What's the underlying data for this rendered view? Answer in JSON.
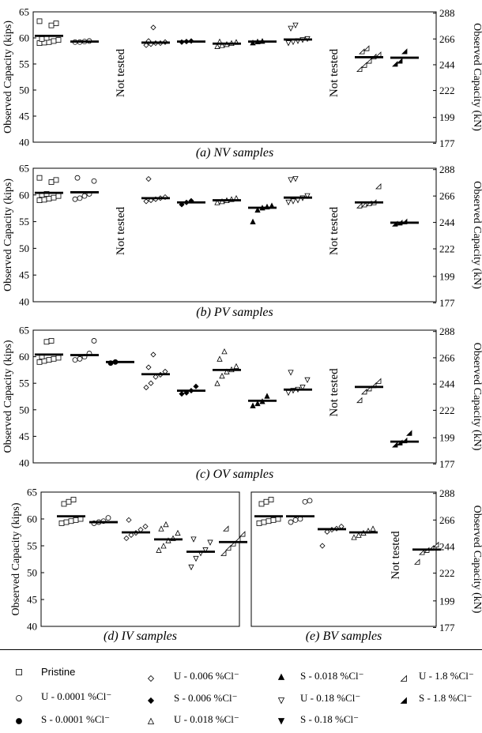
{
  "chart_data": [
    {
      "type": "scatter",
      "caption": "(a) NV samples",
      "ylabel_left": "Observed Capacity (kips)",
      "ylabel_right": "Observed Capacity (kN)",
      "ylim": [
        40,
        65
      ],
      "yticks_left": [
        "40",
        "45",
        "50",
        "55",
        "60",
        "65"
      ],
      "yticks_right": [
        "177",
        "199",
        "222",
        "244",
        "266",
        "288"
      ],
      "yticks_right_values": [
        177,
        199,
        222,
        244,
        266,
        288
      ],
      "not_tested_text": "Not tested",
      "groups": [
        {
          "condition": "Pristine",
          "mean": 60.4,
          "values": [
            59.0,
            59.1,
            59.2,
            59.4,
            59.6,
            59.8,
            60.0,
            62.4,
            62.8,
            63.2
          ]
        },
        {
          "condition": "U - 0.0001 %Cl⁻",
          "mean": 59.3,
          "values": [
            59.2,
            59.2,
            59.3,
            59.4
          ]
        },
        {
          "condition": "S - 0.0001 %Cl⁻",
          "not_tested": true
        },
        {
          "condition": "U - 0.006 %Cl⁻",
          "mean": 59.1,
          "values": [
            58.6,
            58.8,
            59.0,
            59.0,
            59.2,
            59.4,
            62.0
          ]
        },
        {
          "condition": "S - 0.006 %Cl⁻",
          "mean": 59.3,
          "values": [
            59.2,
            59.3,
            59.4
          ]
        },
        {
          "condition": "U - 0.018 %Cl⁻",
          "mean": 58.9,
          "values": [
            58.4,
            58.6,
            58.8,
            59.0,
            59.2,
            59.3
          ]
        },
        {
          "condition": "S - 0.018 %Cl⁻",
          "mean": 59.3,
          "values": [
            59.1,
            59.3,
            59.4
          ]
        },
        {
          "condition": "U - 0.18 %Cl⁻",
          "mean": 59.7,
          "values": [
            59.0,
            59.2,
            59.4,
            59.6,
            59.8,
            61.8,
            62.4
          ]
        },
        {
          "condition": "S - 0.18 %Cl⁻",
          "not_tested": true
        },
        {
          "condition": "U - 1.8 %Cl⁻",
          "mean": 56.3,
          "values": [
            54.0,
            54.8,
            55.6,
            56.4,
            56.8,
            57.4,
            58.0
          ]
        },
        {
          "condition": "S - 1.8 %Cl⁻",
          "mean": 56.2,
          "values": [
            55.0,
            55.6,
            57.4
          ]
        }
      ]
    },
    {
      "type": "scatter",
      "caption": "(b) PV samples",
      "ylabel_left": "Observed Capacity (kips)",
      "ylabel_right": "Observed Capacity (kN)",
      "ylim": [
        40,
        65
      ],
      "yticks_left": [
        "40",
        "45",
        "50",
        "55",
        "60",
        "65"
      ],
      "yticks_right": [
        "177",
        "199",
        "222",
        "244",
        "266",
        "288"
      ],
      "yticks_right_values": [
        177,
        199,
        222,
        244,
        266,
        288
      ],
      "not_tested_text": "Not tested",
      "groups": [
        {
          "condition": "Pristine",
          "mean": 60.4,
          "values": [
            59.0,
            59.1,
            59.3,
            59.5,
            59.8,
            60.0,
            60.2,
            62.4,
            62.8,
            63.2
          ]
        },
        {
          "condition": "U - 0.0001 %Cl⁻",
          "mean": 60.5,
          "values": [
            59.2,
            59.4,
            59.8,
            60.2,
            62.6,
            63.2
          ]
        },
        {
          "condition": "S - 0.0001 %Cl⁻",
          "not_tested": true
        },
        {
          "condition": "U - 0.006 %Cl⁻",
          "mean": 59.4,
          "values": [
            58.8,
            59.0,
            59.2,
            59.4,
            59.6,
            63.0
          ]
        },
        {
          "condition": "S - 0.006 %Cl⁻",
          "mean": 58.6,
          "values": [
            58.2,
            58.6,
            58.9
          ]
        },
        {
          "condition": "U - 0.018 %Cl⁻",
          "mean": 59.0,
          "values": [
            58.6,
            58.8,
            59.0,
            59.2,
            59.4
          ]
        },
        {
          "condition": "S - 0.018 %Cl⁻",
          "mean": 57.6,
          "values": [
            55.0,
            57.2,
            57.6,
            57.8,
            58.0
          ]
        },
        {
          "condition": "U - 0.18 %Cl⁻",
          "mean": 59.5,
          "values": [
            58.6,
            58.8,
            59.0,
            59.4,
            59.8,
            62.8,
            63.0
          ]
        },
        {
          "condition": "S - 0.18 %Cl⁻",
          "not_tested": true
        },
        {
          "condition": "U - 1.8 %Cl⁻",
          "mean": 58.6,
          "values": [
            58.0,
            58.2,
            58.4,
            58.6,
            61.6
          ]
        },
        {
          "condition": "S - 1.8 %Cl⁻",
          "mean": 54.8,
          "values": [
            54.6,
            54.8,
            55.0
          ]
        }
      ]
    },
    {
      "type": "scatter",
      "caption": "(c) OV samples",
      "ylabel_left": "Observed Capacity (kips)",
      "ylabel_right": "Observed Capacity (kN)",
      "ylim": [
        40,
        65
      ],
      "yticks_left": [
        "40",
        "45",
        "50",
        "55",
        "60",
        "65"
      ],
      "yticks_right": [
        "177",
        "199",
        "222",
        "244",
        "266",
        "288"
      ],
      "yticks_right_values": [
        177,
        199,
        222,
        244,
        266,
        288
      ],
      "not_tested_text": "Not tested",
      "groups": [
        {
          "condition": "Pristine",
          "mean": 60.4,
          "values": [
            59.0,
            59.2,
            59.4,
            59.6,
            59.8,
            60.0,
            62.8,
            63.0
          ]
        },
        {
          "condition": "U - 0.0001 %Cl⁻",
          "mean": 60.3,
          "values": [
            59.4,
            59.6,
            60.0,
            60.6,
            63.0
          ]
        },
        {
          "condition": "S - 0.0001 %Cl⁻",
          "mean": 59.0,
          "values": [
            58.8,
            59.0
          ]
        },
        {
          "condition": "U - 0.006 %Cl⁻",
          "mean": 56.7,
          "values": [
            54.2,
            55.0,
            56.2,
            56.6,
            57.2,
            58.0,
            60.4
          ]
        },
        {
          "condition": "S - 0.006 %Cl⁻",
          "mean": 53.6,
          "values": [
            53.0,
            53.2,
            53.6,
            54.4
          ]
        },
        {
          "condition": "U - 0.018 %Cl⁻",
          "mean": 57.5,
          "values": [
            55.0,
            56.4,
            57.2,
            57.6,
            58.2,
            59.6,
            61.0
          ]
        },
        {
          "condition": "S - 0.018 %Cl⁻",
          "mean": 51.7,
          "values": [
            50.8,
            51.2,
            51.6,
            52.6
          ]
        },
        {
          "condition": "U - 0.18 %Cl⁻",
          "mean": 53.8,
          "values": [
            53.2,
            53.6,
            53.8,
            54.2,
            55.6,
            57.0
          ]
        },
        {
          "condition": "S - 0.18 %Cl⁻",
          "not_tested": true
        },
        {
          "condition": "U - 1.8 %Cl⁻",
          "mean": 54.3,
          "values": [
            51.8,
            53.4,
            54.0,
            54.6,
            55.4
          ]
        },
        {
          "condition": "S - 1.8 %Cl⁻",
          "mean": 44.0,
          "values": [
            43.4,
            43.8,
            44.2,
            45.6
          ]
        }
      ]
    },
    {
      "type": "scatter",
      "caption": "(d) IV samples",
      "ylabel_left": "Observed Capacity (kips)",
      "ylim": [
        40,
        65
      ],
      "yticks_left": [
        "40",
        "45",
        "50",
        "55",
        "60",
        "65"
      ],
      "groups": [
        {
          "condition": "Pristine",
          "mean": 60.5,
          "values": [
            59.2,
            59.4,
            59.6,
            59.8,
            60.0,
            62.8,
            63.2,
            63.6
          ]
        },
        {
          "condition": "U - 0.0001 %Cl⁻",
          "mean": 59.4,
          "values": [
            59.2,
            59.4,
            59.6,
            60.2
          ]
        },
        {
          "condition": "U - 0.006 %Cl⁻",
          "mean": 57.5,
          "values": [
            56.4,
            57.0,
            57.4,
            58.0,
            58.6,
            59.8
          ]
        },
        {
          "condition": "U - 0.018 %Cl⁻",
          "mean": 56.2,
          "values": [
            54.2,
            55.0,
            56.0,
            56.4,
            57.4,
            58.2,
            59.0
          ]
        },
        {
          "condition": "U - 0.18 %Cl⁻",
          "mean": 53.9,
          "values": [
            51.0,
            52.6,
            53.6,
            54.2,
            55.6,
            56.2
          ]
        },
        {
          "condition": "U - 1.8 %Cl⁻",
          "mean": 55.7,
          "values": [
            53.6,
            54.6,
            55.4,
            56.2,
            57.2,
            58.2
          ]
        }
      ]
    },
    {
      "type": "scatter",
      "caption": "(e) BV samples",
      "ylabel_right": "Observed Capacity (kN)",
      "ylim": [
        40,
        65
      ],
      "yticks_right": [
        "177",
        "199",
        "222",
        "244",
        "266",
        "288"
      ],
      "yticks_right_values": [
        177,
        199,
        222,
        244,
        266,
        288
      ],
      "not_tested_text": "Not tested",
      "groups": [
        {
          "condition": "Pristine",
          "mean": 60.5,
          "values": [
            59.2,
            59.4,
            59.6,
            59.8,
            60.0,
            62.8,
            63.2,
            63.6
          ]
        },
        {
          "condition": "U - 0.0001 %Cl⁻",
          "mean": 60.5,
          "values": [
            59.4,
            59.8,
            60.0,
            63.2,
            63.4
          ]
        },
        {
          "condition": "U - 0.006 %Cl⁻",
          "mean": 58.1,
          "values": [
            55.0,
            57.6,
            58.0,
            58.2,
            58.6
          ]
        },
        {
          "condition": "U - 0.018 %Cl⁻",
          "mean": 57.5,
          "values": [
            56.6,
            57.0,
            57.4,
            57.8,
            58.2
          ]
        },
        {
          "condition": "U - 0.18 %Cl⁻",
          "not_tested": true
        },
        {
          "condition": "U - 1.8 %Cl⁻",
          "mean": 54.3,
          "values": [
            52.0,
            53.8,
            54.2,
            54.6,
            55.2
          ]
        }
      ]
    }
  ],
  "legend": {
    "items": [
      {
        "symbol": "square-open",
        "label": "Pristine"
      },
      {
        "symbol": "circle-open",
        "label": "U - 0.0001 %Cl⁻"
      },
      {
        "symbol": "circle-filled",
        "label": "S - 0.0001 %Cl⁻"
      },
      {
        "symbol": "diamond-open",
        "label": "U - 0.006 %Cl⁻"
      },
      {
        "symbol": "diamond-filled",
        "label": "S - 0.006 %Cl⁻"
      },
      {
        "symbol": "triangle-up-open",
        "label": "U - 0.018 %Cl⁻"
      },
      {
        "symbol": "triangle-up-filled",
        "label": "S - 0.018 %Cl⁻"
      },
      {
        "symbol": "triangle-down-open",
        "label": "U - 0.18 %Cl⁻"
      },
      {
        "symbol": "triangle-down-filled",
        "label": "S - 0.18 %Cl⁻"
      },
      {
        "symbol": "right-triangle-open",
        "label": "U - 1.8 %Cl⁻"
      },
      {
        "symbol": "right-triangle-filled",
        "label": "S - 1.8 %Cl⁻"
      }
    ]
  }
}
